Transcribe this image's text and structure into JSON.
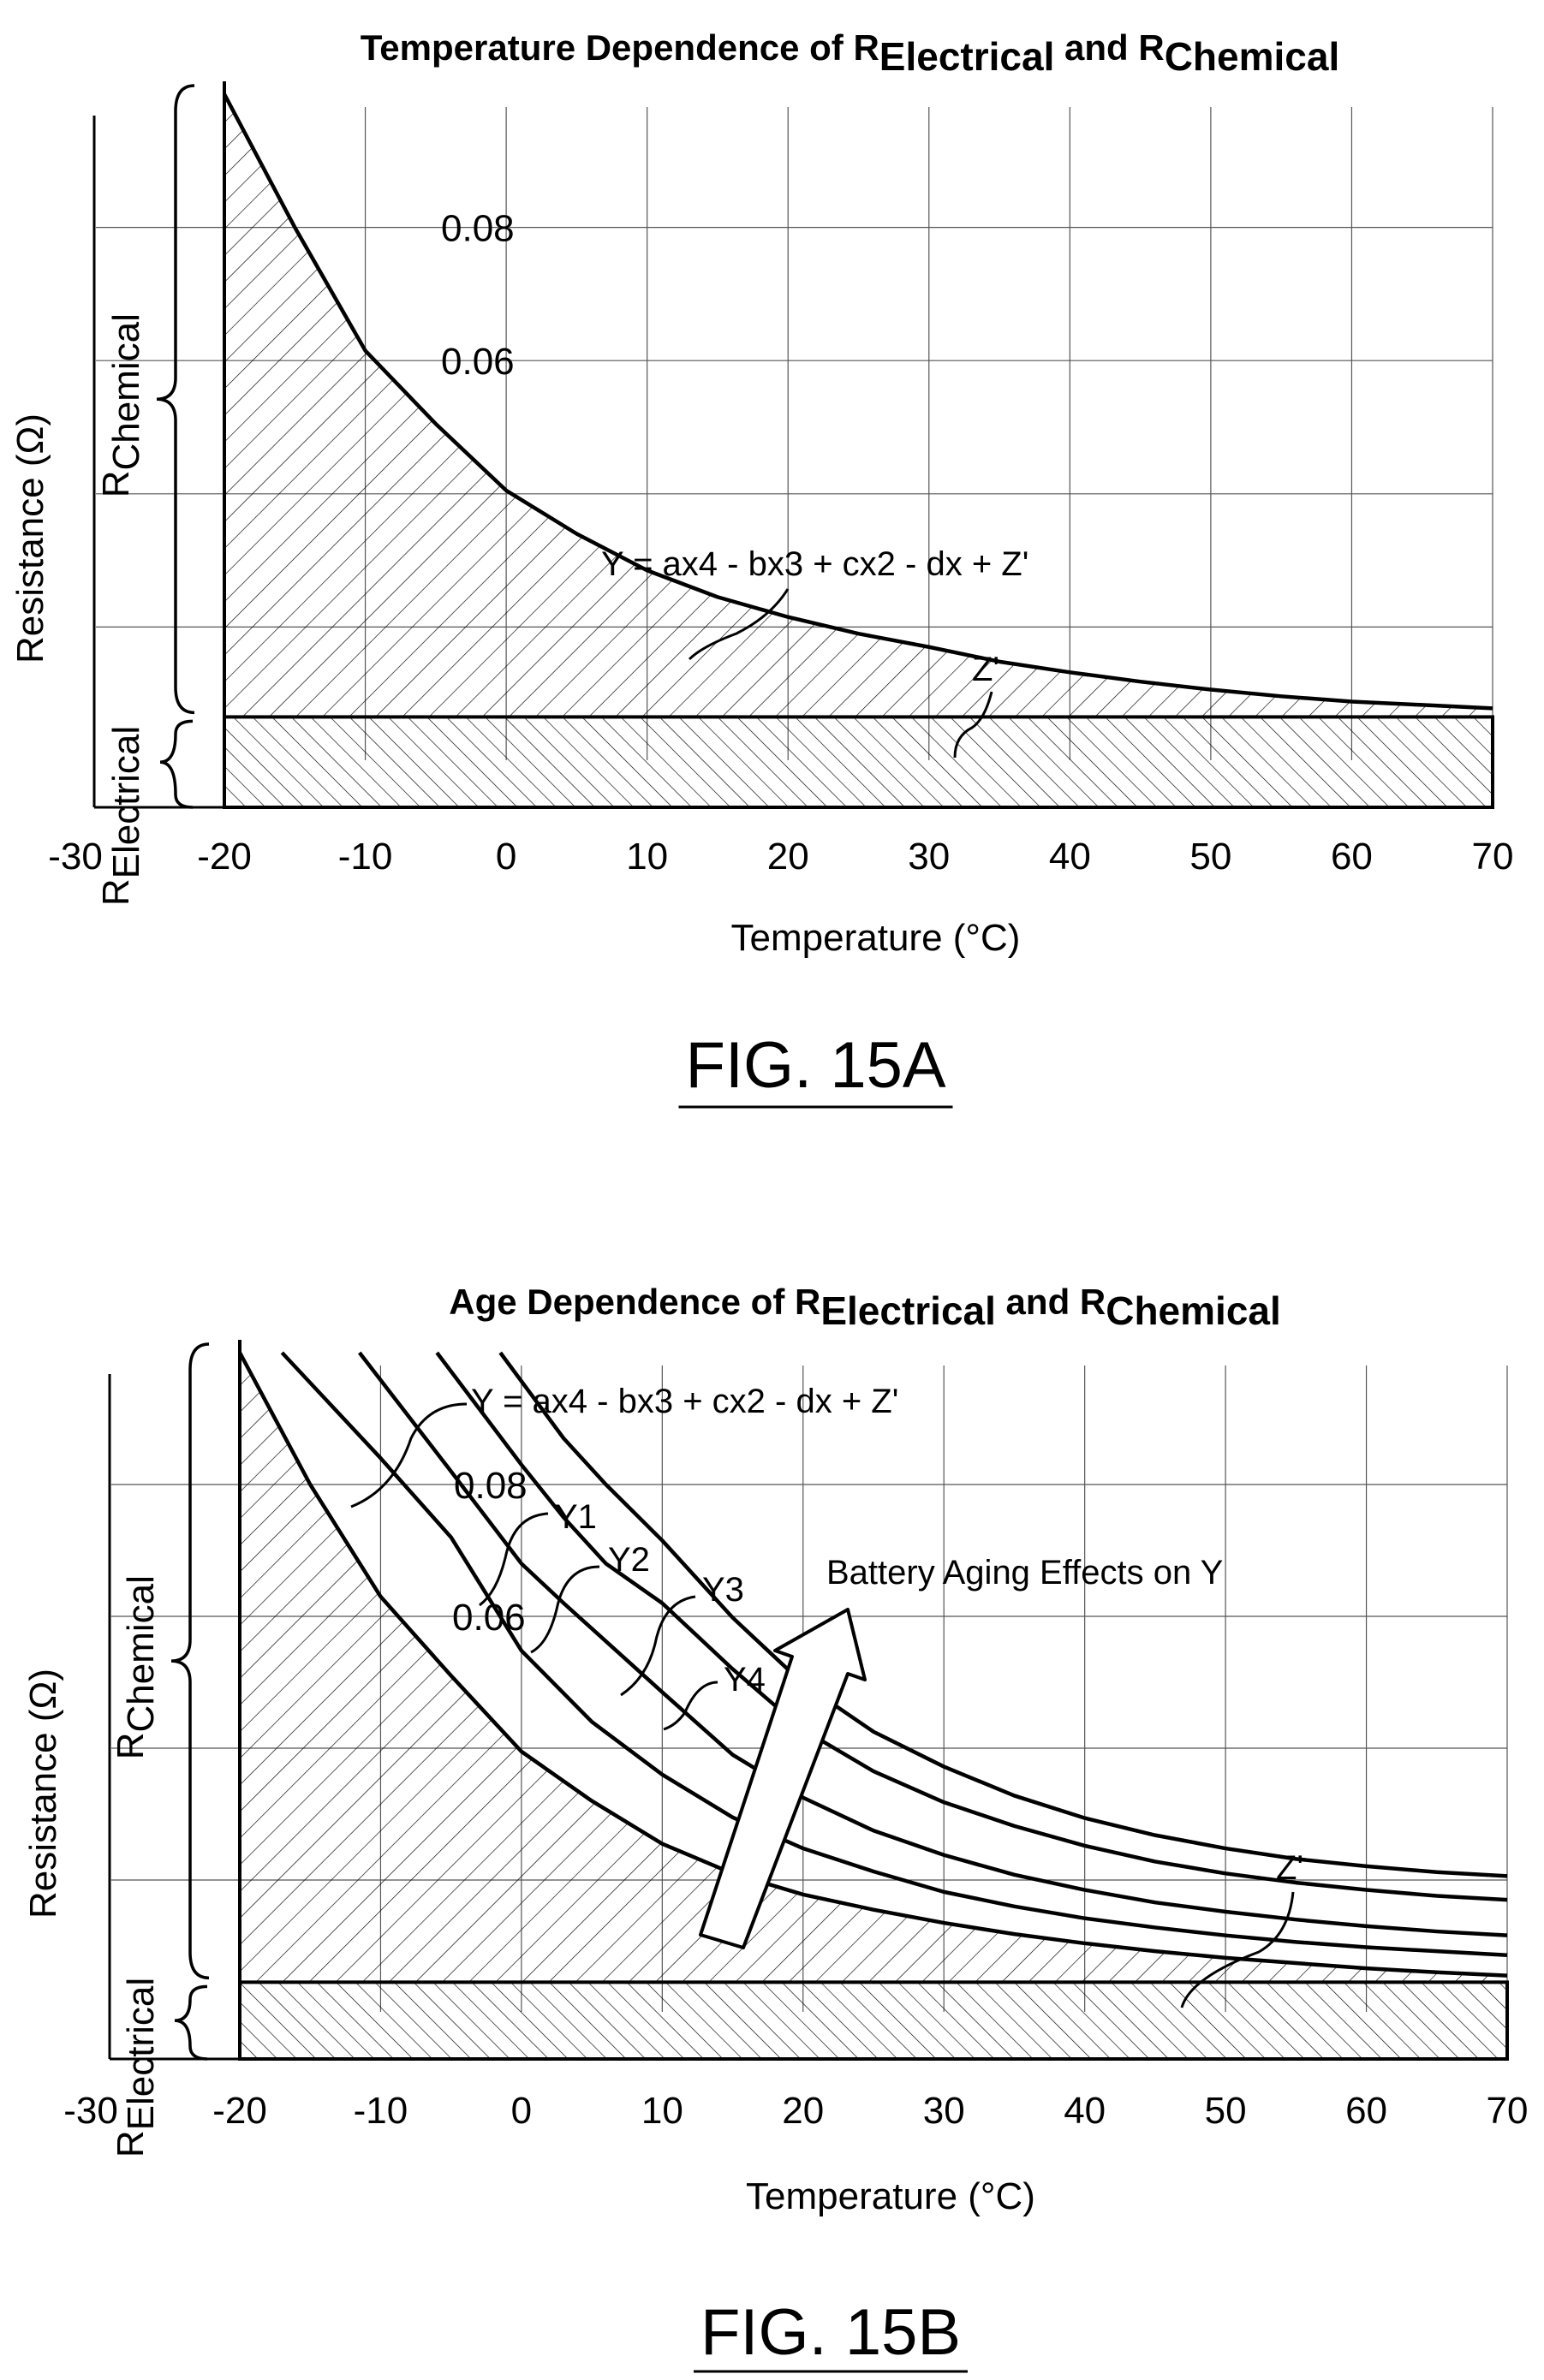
{
  "chart_data": [
    {
      "type": "area",
      "figure_label": "FIG. 15A",
      "title_parts": [
        "Temperature Dependence of R",
        "Electrical",
        " and R",
        "Chemical"
      ],
      "xlabel": "Temperature (°C)",
      "ylabel": "Resistance (Ω)",
      "region_labels": {
        "chemical": [
          "R",
          "Chemical"
        ],
        "electrical": [
          "R",
          "Electrical"
        ]
      },
      "x_ticks": [
        -30,
        -20,
        -10,
        0,
        10,
        20,
        30,
        40,
        50,
        60,
        70
      ],
      "xlim": [
        -20,
        70
      ],
      "ylim": [
        0,
        0.1
      ],
      "y_tick_labels": [
        {
          "value": 0.08,
          "label": "0.08"
        },
        {
          "value": 0.06,
          "label": "0.06"
        }
      ],
      "gridlines_y": [
        0.02,
        0.04,
        0.06,
        0.08
      ],
      "grid": true,
      "electrical_resistance": 0.0065,
      "series": [
        {
          "name": "Y",
          "x": [
            -20,
            -15,
            -10,
            -5,
            0,
            5,
            10,
            15,
            20,
            25,
            30,
            35,
            40,
            45,
            50,
            55,
            60,
            65,
            70
          ],
          "values": [
            0.1,
            0.08,
            0.0615,
            0.0505,
            0.0405,
            0.034,
            0.0285,
            0.0245,
            0.0215,
            0.019,
            0.017,
            0.0148,
            0.0132,
            0.0118,
            0.0106,
            0.0096,
            0.0088,
            0.0083,
            0.0078
          ]
        }
      ],
      "annotations": [
        {
          "text": "Y = ax4 - bx3 + cx2 - dx + Z'",
          "target": "Y"
        },
        {
          "text": "Z'",
          "target": "electrical_baseline"
        }
      ]
    },
    {
      "type": "line",
      "figure_label": "FIG. 15B",
      "title_parts": [
        "Age Dependence of R",
        "Electrical",
        " and R",
        "Chemical"
      ],
      "xlabel": "Temperature (°C)",
      "ylabel": "Resistance (Ω)",
      "region_labels": {
        "chemical": [
          "R",
          "Chemical"
        ],
        "electrical": [
          "R",
          "Electrical"
        ]
      },
      "x_ticks": [
        -30,
        -20,
        -10,
        0,
        10,
        20,
        30,
        40,
        50,
        60,
        70
      ],
      "xlim": [
        -20,
        70
      ],
      "ylim": [
        0,
        0.1
      ],
      "y_tick_labels": [
        {
          "value": 0.08,
          "label": "0.08"
        },
        {
          "value": 0.06,
          "label": "0.06"
        }
      ],
      "gridlines_y": [
        0.02,
        0.04,
        0.06,
        0.08
      ],
      "grid": true,
      "electrical_resistance": 0.0045,
      "series": [
        {
          "name": "Y",
          "x": [
            -20,
            -15,
            -10,
            -5,
            0,
            5,
            10,
            15,
            20,
            25,
            30,
            35,
            40,
            45,
            50,
            55,
            60,
            65,
            70
          ],
          "values": [
            0.1,
            0.08,
            0.063,
            0.051,
            0.0395,
            0.032,
            0.0255,
            0.021,
            0.0178,
            0.0155,
            0.0135,
            0.0118,
            0.0104,
            0.0092,
            0.0082,
            0.0074,
            0.0066,
            0.006,
            0.0055
          ]
        },
        {
          "name": "Y1",
          "x": [
            -17,
            -10,
            -5,
            0,
            5,
            10,
            15,
            20,
            25,
            30,
            35,
            40,
            45,
            50,
            55,
            60,
            65,
            70
          ],
          "values": [
            0.1,
            0.084,
            0.072,
            0.0548,
            0.044,
            0.036,
            0.0295,
            0.0248,
            0.0213,
            0.0182,
            0.016,
            0.0142,
            0.0128,
            0.0116,
            0.0106,
            0.0098,
            0.0092,
            0.0086
          ]
        },
        {
          "name": "Y2",
          "x": [
            -11.5,
            -5,
            0,
            3,
            10,
            15,
            20,
            25,
            30,
            35,
            40,
            45,
            50,
            55,
            60,
            65,
            70
          ],
          "values": [
            0.1,
            0.082,
            0.068,
            0.062,
            0.0485,
            0.039,
            0.0325,
            0.0275,
            0.0238,
            0.0208,
            0.0185,
            0.0166,
            0.0152,
            0.014,
            0.013,
            0.0122,
            0.0116
          ]
        },
        {
          "name": "Y3",
          "x": [
            -6,
            0,
            3,
            6,
            10,
            15,
            20,
            25,
            30,
            35,
            40,
            45,
            50,
            55,
            60,
            65,
            70
          ],
          "values": [
            0.1,
            0.083,
            0.075,
            0.068,
            0.062,
            0.052,
            0.0428,
            0.0365,
            0.0318,
            0.0282,
            0.0252,
            0.0228,
            0.021,
            0.0196,
            0.0185,
            0.0176,
            0.017
          ]
        },
        {
          "name": "Y4",
          "x": [
            -1.5,
            3,
            6,
            10,
            15,
            20,
            25,
            30,
            35,
            40,
            45,
            50,
            55,
            60,
            65,
            70
          ],
          "values": [
            0.1,
            0.087,
            0.08,
            0.0715,
            0.0598,
            0.0498,
            0.0425,
            0.0372,
            0.0328,
            0.0294,
            0.0268,
            0.0248,
            0.0232,
            0.0221,
            0.0212,
            0.0206
          ]
        }
      ],
      "annotations": [
        {
          "text": "Y = ax4 - bx3 + cx2 - dx + Z'",
          "target": "Y"
        },
        {
          "text": "Y1",
          "target": "Y1"
        },
        {
          "text": "Y2",
          "target": "Y2"
        },
        {
          "text": "Y3",
          "target": "Y3"
        },
        {
          "text": "Y4",
          "target": "Y4"
        },
        {
          "text": "Battery Aging Effects on Y",
          "target": "arrow"
        },
        {
          "text": "Z'",
          "target": "electrical_baseline"
        }
      ]
    }
  ]
}
